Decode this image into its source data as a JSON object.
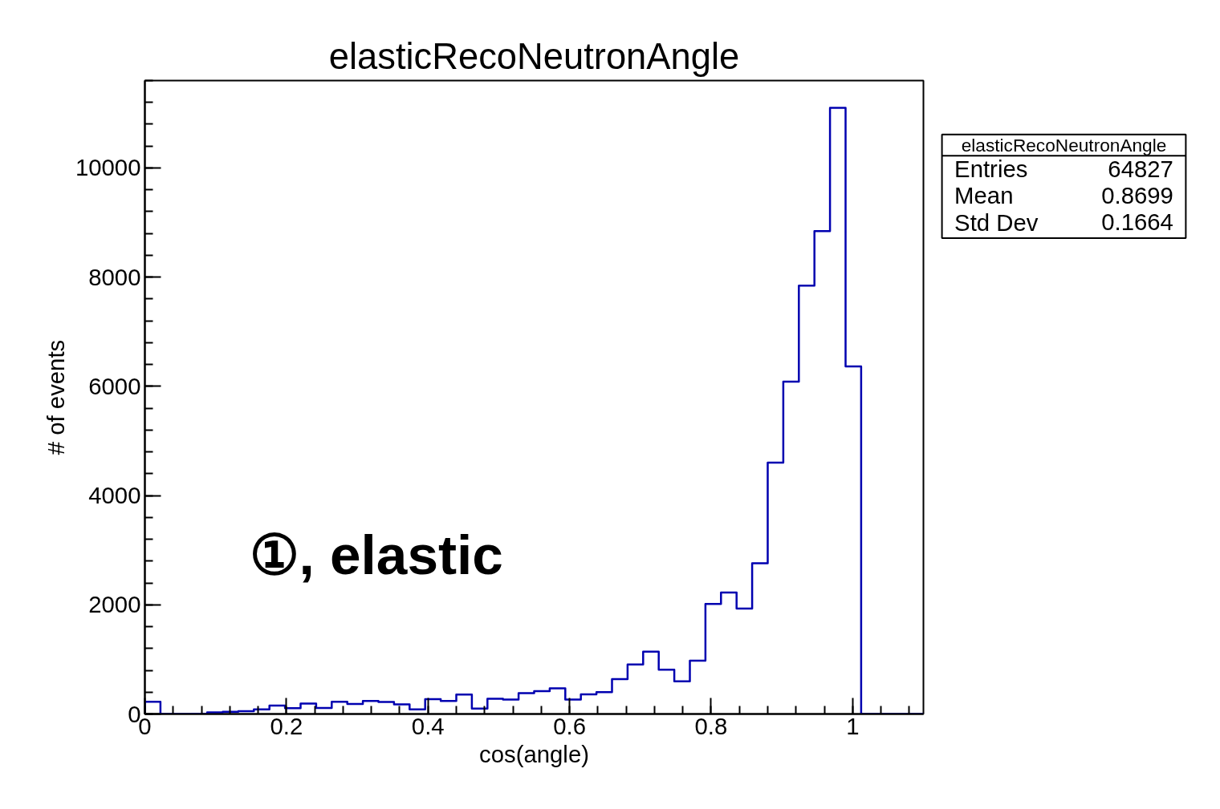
{
  "chart_data": {
    "type": "histogram",
    "title": "elasticRecoNeutronAngle",
    "xlabel": "cos(angle)",
    "ylabel": "# of events",
    "bins": [
      0,
      0.022,
      0.044,
      0.066,
      0.088,
      0.11,
      0.132,
      0.154,
      0.176,
      0.198,
      0.22,
      0.242,
      0.264,
      0.286,
      0.308,
      0.33,
      0.352,
      0.374,
      0.396,
      0.418,
      0.44,
      0.462,
      0.484,
      0.506,
      0.528,
      0.55,
      0.572,
      0.594,
      0.616,
      0.638,
      0.66,
      0.682,
      0.704,
      0.726,
      0.748,
      0.77,
      0.792,
      0.814,
      0.836,
      0.858,
      0.88,
      0.902,
      0.924,
      0.946,
      0.968,
      0.99,
      1.012,
      1.034,
      1.056,
      1.078,
      1.1
    ],
    "values": [
      225,
      0,
      0,
      5,
      30,
      40,
      50,
      85,
      155,
      105,
      190,
      110,
      225,
      185,
      240,
      220,
      175,
      85,
      270,
      240,
      355,
      100,
      280,
      265,
      380,
      420,
      470,
      265,
      360,
      400,
      640,
      905,
      1140,
      810,
      600,
      975,
      2015,
      2225,
      1930,
      2760,
      4605,
      6085,
      7845,
      8845,
      11100,
      6365,
      0,
      0,
      0,
      0
    ],
    "color": "#0000b0",
    "xlim": [
      0,
      1.1
    ],
    "ylim": [
      0,
      11600
    ],
    "xticks": [
      0,
      0.2,
      0.4,
      0.6,
      0.8,
      1
    ],
    "yticks": [
      0,
      2000,
      4000,
      6000,
      8000,
      10000
    ],
    "grid": false,
    "annotations": [
      "elasticRecoNeutronAngle",
      "Entries 64827",
      "Mean 0.8699",
      "Std Dev 0.1664",
      "①, elastic"
    ]
  }
}
